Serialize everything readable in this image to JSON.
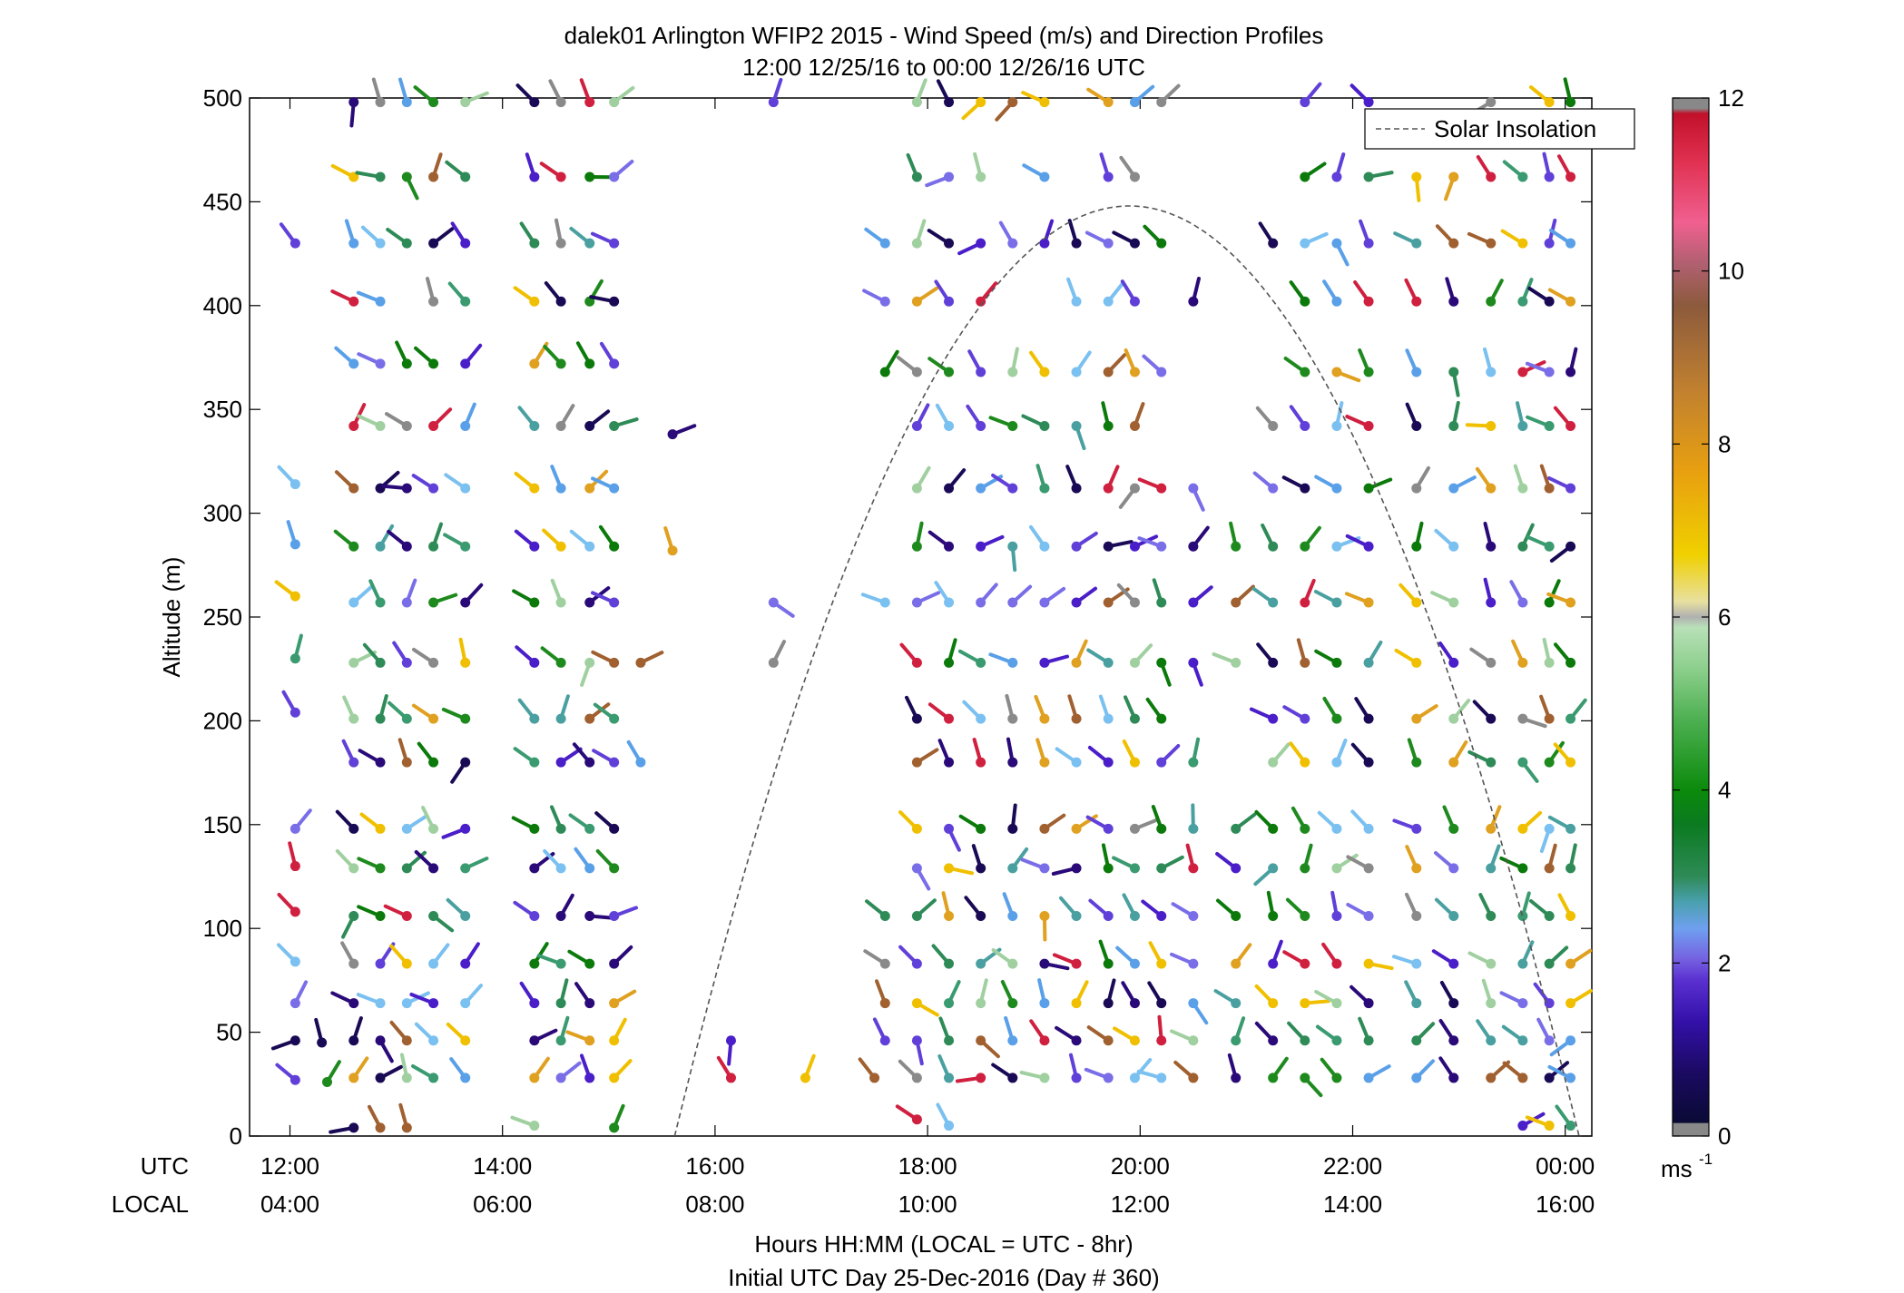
{
  "chart_data": {
    "type": "scatter",
    "subtype": "wind-barb-profile",
    "title": "dalek01 Arlington WFIP2 2015 - Wind Speed (m/s) and Direction Profiles",
    "subtitle": "12:00 12/25/16 to 00:00 12/26/16  UTC",
    "ylabel": "Altitude (m)",
    "xlabel": "Hours HH:MM  (LOCAL = UTC - 8hr)",
    "xlabel2": "Initial UTC Day 25-Dec-2016 (Day # 360)",
    "x_row_labels": [
      "UTC",
      "LOCAL"
    ],
    "utc_ticks": [
      "12:00",
      "14:00",
      "16:00",
      "18:00",
      "20:00",
      "22:00",
      "00:00"
    ],
    "local_ticks": [
      "04:00",
      "06:00",
      "08:00",
      "10:00",
      "12:00",
      "14:00",
      "16:00"
    ],
    "xlim_hours": [
      11.62,
      24.25
    ],
    "xtick_hours": [
      12,
      14,
      16,
      18,
      20,
      22,
      24
    ],
    "ylim": [
      0,
      500
    ],
    "yticks": [
      0,
      50,
      100,
      150,
      200,
      250,
      300,
      350,
      400,
      450,
      500
    ],
    "legend": {
      "label": "Solar Insolation",
      "position": "top-right"
    },
    "colorbar": {
      "label": "ms",
      "label_sup": "-1",
      "ticks": [
        0,
        2,
        4,
        6,
        8,
        10,
        12
      ],
      "range": [
        0,
        12
      ]
    },
    "solar_insolation": {
      "peak_hour": 19.9,
      "peak_altitude": 448,
      "sunrise_hour": 15.62,
      "sunset_hour": 24.13
    },
    "barb_columns": [
      {
        "t": 12.05,
        "alts": [
          430,
          314,
          285,
          260,
          230,
          204,
          148,
          130,
          108,
          84,
          64,
          46,
          27
        ]
      },
      {
        "t": 12.35,
        "alts": [
          26
        ]
      },
      {
        "t": 12.3,
        "alts": [
          45
        ]
      },
      {
        "t": 12.6,
        "alts": [
          4,
          28,
          46,
          64,
          83,
          106,
          129,
          148,
          180,
          201,
          228,
          257,
          284,
          312,
          342,
          372,
          402,
          430,
          462,
          498
        ]
      },
      {
        "t": 12.85,
        "alts": [
          4,
          28,
          46,
          64,
          83,
          106,
          129,
          148,
          180,
          201,
          228,
          257,
          284,
          312,
          342,
          372,
          402,
          430,
          462,
          498
        ]
      },
      {
        "t": 13.1,
        "alts": [
          4,
          28,
          46,
          64,
          83,
          106,
          129,
          148,
          180,
          201,
          228,
          257,
          284,
          312,
          342,
          372,
          430,
          462,
          498
        ]
      },
      {
        "t": 13.35,
        "alts": [
          28,
          46,
          64,
          83,
          106,
          129,
          148,
          180,
          201,
          228,
          257,
          284,
          312,
          342,
          372,
          402,
          430,
          462,
          498
        ]
      },
      {
        "t": 13.65,
        "alts": [
          28,
          46,
          64,
          83,
          106,
          129,
          148,
          180,
          201,
          228,
          257,
          284,
          312,
          342,
          372,
          402,
          430,
          462,
          498
        ]
      },
      {
        "t": 14.3,
        "alts": [
          5,
          28,
          46,
          64,
          83,
          106,
          129,
          148,
          180,
          201,
          228,
          257,
          284,
          312,
          342,
          372,
          402,
          430,
          462,
          498
        ]
      },
      {
        "t": 14.55,
        "alts": [
          28,
          46,
          64,
          83,
          106,
          129,
          148,
          180,
          201,
          228,
          257,
          284,
          312,
          342,
          372,
          402,
          430,
          462,
          498
        ]
      },
      {
        "t": 14.82,
        "alts": [
          28,
          46,
          64,
          83,
          106,
          129,
          148,
          180,
          201,
          228,
          257,
          284,
          312,
          342,
          372,
          402,
          430,
          462,
          498
        ]
      },
      {
        "t": 15.05,
        "alts": [
          4,
          28,
          46,
          64,
          83,
          106,
          129,
          148,
          180,
          201,
          228,
          257,
          284,
          312,
          342,
          372,
          402,
          430,
          462,
          498
        ]
      },
      {
        "t": 15.3,
        "alts": [
          180,
          228
        ]
      },
      {
        "t": 15.6,
        "alts": [
          282,
          338
        ]
      },
      {
        "t": 16.15,
        "alts": [
          28,
          46
        ]
      },
      {
        "t": 16.55,
        "alts": [
          228,
          257,
          498
        ]
      },
      {
        "t": 16.85,
        "alts": [
          28
        ]
      },
      {
        "t": 17.5,
        "alts": [
          28
        ]
      },
      {
        "t": 17.6,
        "alts": [
          46,
          64,
          83,
          106,
          257,
          368,
          402,
          430
        ]
      },
      {
        "t": 17.9,
        "alts": [
          8,
          28,
          46,
          64,
          83,
          106,
          129,
          148,
          180,
          201,
          228,
          257,
          284,
          312,
          342,
          368,
          402,
          430,
          462,
          498
        ]
      },
      {
        "t": 18.2,
        "alts": [
          5,
          28,
          46,
          64,
          83,
          106,
          129,
          148,
          180,
          201,
          228,
          257,
          284,
          312,
          342,
          368,
          402,
          430,
          462,
          498
        ]
      },
      {
        "t": 18.5,
        "alts": [
          28,
          46,
          64,
          83,
          106,
          129,
          148,
          180,
          201,
          228,
          257,
          284,
          312,
          342,
          368,
          402,
          430,
          462,
          498
        ]
      },
      {
        "t": 18.8,
        "alts": [
          28,
          46,
          64,
          83,
          106,
          129,
          148,
          180,
          201,
          228,
          257,
          284,
          312,
          342,
          368,
          430,
          498
        ]
      },
      {
        "t": 19.1,
        "alts": [
          28,
          46,
          64,
          83,
          106,
          129,
          148,
          180,
          201,
          228,
          257,
          284,
          312,
          342,
          368,
          430,
          462,
          498
        ]
      },
      {
        "t": 19.4,
        "alts": [
          28,
          46,
          64,
          83,
          106,
          129,
          148,
          180,
          201,
          228,
          257,
          284,
          312,
          342,
          368,
          402,
          430
        ]
      },
      {
        "t": 19.7,
        "alts": [
          28,
          46,
          64,
          83,
          106,
          129,
          148,
          180,
          201,
          228,
          257,
          284,
          312,
          342,
          368,
          402,
          430,
          462,
          498
        ]
      },
      {
        "t": 19.95,
        "alts": [
          28,
          46,
          64,
          83,
          106,
          129,
          148,
          180,
          201,
          228,
          257,
          284,
          312,
          342,
          368,
          402,
          430,
          462,
          498
        ]
      },
      {
        "t": 20.2,
        "alts": [
          28,
          46,
          64,
          83,
          106,
          129,
          148,
          180,
          201,
          228,
          257,
          284,
          312,
          368,
          430,
          498
        ]
      },
      {
        "t": 20.5,
        "alts": [
          28,
          46,
          64,
          83,
          106,
          129,
          148,
          180,
          228,
          257,
          284,
          312,
          402
        ]
      },
      {
        "t": 20.9,
        "alts": [
          28,
          46,
          64,
          83,
          106,
          129,
          148,
          228,
          257,
          284
        ]
      },
      {
        "t": 21.25,
        "alts": [
          28,
          46,
          64,
          83,
          106,
          129,
          148,
          180,
          201,
          228,
          257,
          284,
          312,
          342,
          430
        ]
      },
      {
        "t": 21.55,
        "alts": [
          28,
          46,
          64,
          83,
          106,
          129,
          148,
          180,
          201,
          228,
          257,
          284,
          312,
          342,
          368,
          402,
          430,
          462,
          498
        ]
      },
      {
        "t": 21.85,
        "alts": [
          28,
          46,
          64,
          83,
          106,
          129,
          148,
          180,
          201,
          228,
          257,
          284,
          312,
          342,
          368,
          402,
          430,
          462
        ]
      },
      {
        "t": 22.15,
        "alts": [
          28,
          46,
          64,
          83,
          106,
          129,
          148,
          180,
          201,
          228,
          257,
          284,
          312,
          342,
          368,
          402,
          430,
          462,
          498
        ]
      },
      {
        "t": 22.6,
        "alts": [
          28,
          46,
          64,
          83,
          106,
          129,
          148,
          180,
          201,
          228,
          257,
          284,
          312,
          342,
          368,
          402,
          430,
          462
        ]
      },
      {
        "t": 22.95,
        "alts": [
          28,
          46,
          64,
          83,
          106,
          129,
          148,
          180,
          201,
          228,
          257,
          284,
          312,
          342,
          368,
          402,
          430,
          462
        ]
      },
      {
        "t": 23.3,
        "alts": [
          28,
          46,
          64,
          83,
          106,
          129,
          148,
          180,
          201,
          228,
          257,
          284,
          312,
          342,
          368,
          402,
          430,
          462,
          498
        ]
      },
      {
        "t": 23.6,
        "alts": [
          5,
          28,
          46,
          64,
          83,
          106,
          129,
          148,
          180,
          201,
          228,
          257,
          284,
          312,
          342,
          368,
          402,
          430,
          462
        ]
      },
      {
        "t": 23.85,
        "alts": [
          5,
          28,
          46,
          64,
          83,
          106,
          129,
          148,
          180,
          201,
          228,
          257,
          284,
          312,
          342,
          368,
          402,
          430,
          462,
          498
        ]
      },
      {
        "t": 24.05,
        "alts": [
          5,
          28,
          46,
          64,
          83,
          106,
          129,
          148,
          180,
          201,
          228,
          257,
          284,
          312,
          342,
          368,
          402,
          430,
          462,
          498
        ]
      }
    ]
  }
}
